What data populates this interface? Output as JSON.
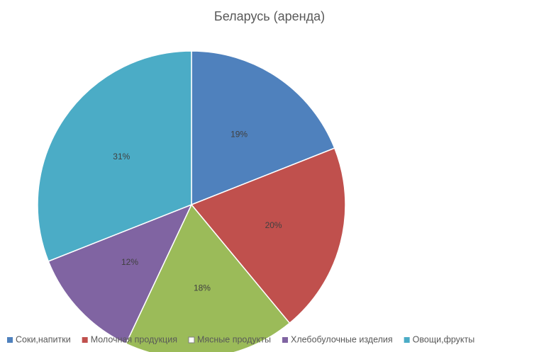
{
  "chart_data": {
    "type": "pie",
    "title": "Беларусь (аренда)",
    "categories": [
      "Соки,напитки",
      "Молочная продукция",
      "Мясные продукты",
      "Хлебобулочные изделия",
      "Овощи,фрукты"
    ],
    "values": [
      19,
      20,
      18,
      12,
      31
    ],
    "value_labels": [
      "19%",
      "20%",
      "18%",
      "12%",
      "31%"
    ],
    "colors": [
      "#4f81bd",
      "#c0504d",
      "#9bbb59",
      "#8064a2",
      "#4bacc6"
    ],
    "legend_colors": [
      "#4f81bd",
      "#c0504d",
      "#ffffff",
      "#8064a2",
      "#4bacc6"
    ],
    "legend": "bottom"
  }
}
